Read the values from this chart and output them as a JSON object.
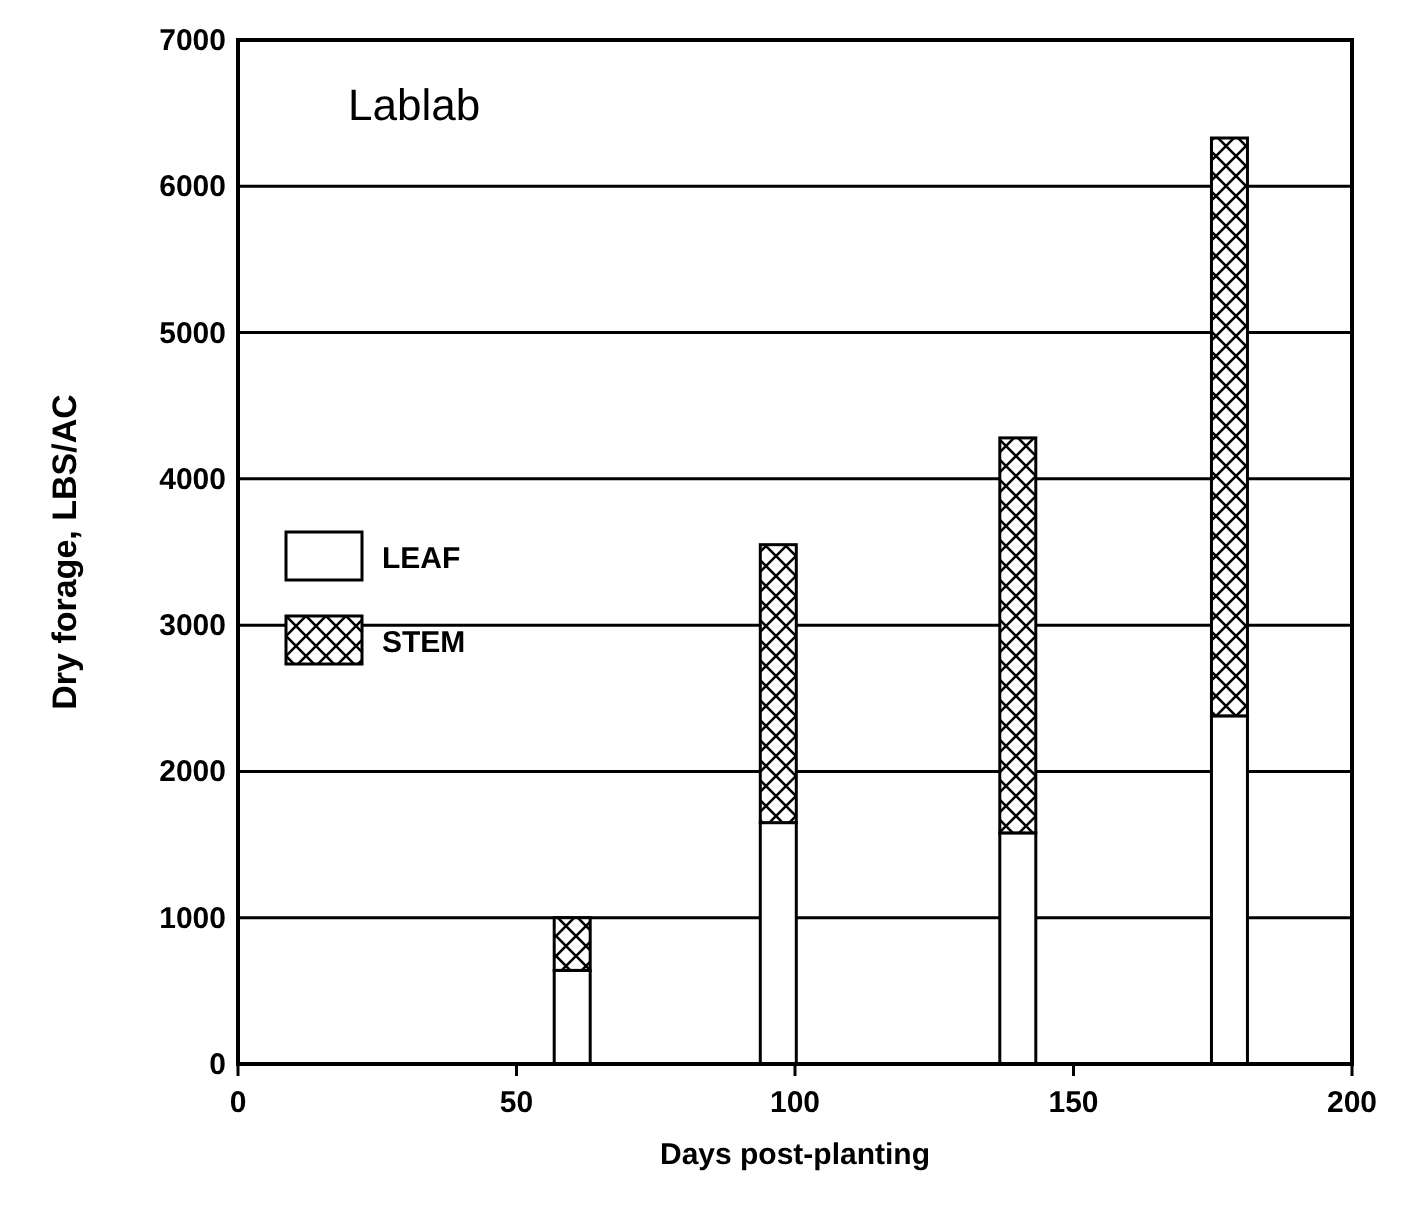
{
  "chart_data": {
    "type": "bar",
    "title": "Lablab",
    "xlabel": "Days post-planting",
    "ylabel": "Dry forage, LBS/AC",
    "x": [
      60,
      97,
      140,
      178
    ],
    "stacked": true,
    "series": [
      {
        "name": "LEAF",
        "color": "#ffffff",
        "values": [
          640,
          1650,
          1580,
          2380
        ]
      },
      {
        "name": "STEM",
        "color": "#000000",
        "values": [
          360,
          1900,
          2700,
          3950
        ]
      }
    ],
    "xlim": [
      0,
      200
    ],
    "xticks": [
      0,
      50,
      100,
      150,
      200
    ],
    "ylim": [
      0,
      7000
    ],
    "yticks": [
      0,
      1000,
      2000,
      3000,
      4000,
      5000,
      6000,
      7000
    ],
    "grid": "y",
    "legend": "left"
  }
}
